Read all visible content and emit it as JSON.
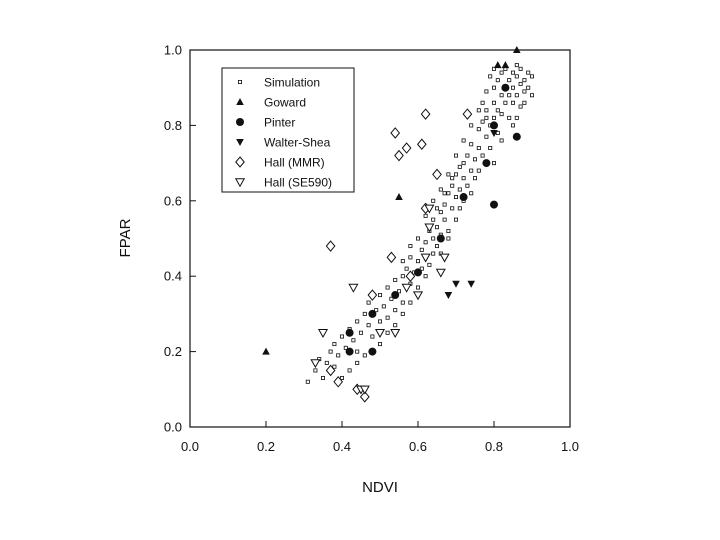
{
  "chart_data": {
    "type": "scatter",
    "xlabel": "NDVI",
    "ylabel": "FPAR",
    "xlim": [
      0.0,
      1.0
    ],
    "ylim": [
      0.0,
      1.0
    ],
    "x_ticks": [
      "0.0",
      "0.2",
      "0.4",
      "0.6",
      "0.8",
      "1.0"
    ],
    "y_ticks": [
      "0.0",
      "0.2",
      "0.4",
      "0.6",
      "0.8",
      "1.0"
    ],
    "grid": false,
    "legend_position": "top-left",
    "series": [
      {
        "name": "Simulation",
        "marker": "small-open-square",
        "points": [
          [
            0.31,
            0.12
          ],
          [
            0.33,
            0.15
          ],
          [
            0.34,
            0.18
          ],
          [
            0.35,
            0.13
          ],
          [
            0.36,
            0.17
          ],
          [
            0.37,
            0.2
          ],
          [
            0.38,
            0.16
          ],
          [
            0.38,
            0.22
          ],
          [
            0.39,
            0.19
          ],
          [
            0.4,
            0.24
          ],
          [
            0.41,
            0.21
          ],
          [
            0.42,
            0.26
          ],
          [
            0.43,
            0.23
          ],
          [
            0.44,
            0.28
          ],
          [
            0.44,
            0.2
          ],
          [
            0.45,
            0.25
          ],
          [
            0.46,
            0.3
          ],
          [
            0.47,
            0.27
          ],
          [
            0.47,
            0.33
          ],
          [
            0.48,
            0.24
          ],
          [
            0.49,
            0.31
          ],
          [
            0.5,
            0.28
          ],
          [
            0.5,
            0.35
          ],
          [
            0.51,
            0.32
          ],
          [
            0.52,
            0.29
          ],
          [
            0.52,
            0.37
          ],
          [
            0.53,
            0.34
          ],
          [
            0.54,
            0.31
          ],
          [
            0.54,
            0.39
          ],
          [
            0.55,
            0.36
          ],
          [
            0.56,
            0.4
          ],
          [
            0.56,
            0.33
          ],
          [
            0.57,
            0.42
          ],
          [
            0.58,
            0.38
          ],
          [
            0.58,
            0.45
          ],
          [
            0.59,
            0.41
          ],
          [
            0.6,
            0.44
          ],
          [
            0.6,
            0.37
          ],
          [
            0.61,
            0.47
          ],
          [
            0.61,
            0.42
          ],
          [
            0.62,
            0.49
          ],
          [
            0.62,
            0.45
          ],
          [
            0.63,
            0.52
          ],
          [
            0.63,
            0.43
          ],
          [
            0.64,
            0.5
          ],
          [
            0.64,
            0.55
          ],
          [
            0.65,
            0.48
          ],
          [
            0.65,
            0.53
          ],
          [
            0.66,
            0.57
          ],
          [
            0.66,
            0.51
          ],
          [
            0.67,
            0.59
          ],
          [
            0.67,
            0.55
          ],
          [
            0.68,
            0.62
          ],
          [
            0.68,
            0.52
          ],
          [
            0.69,
            0.58
          ],
          [
            0.69,
            0.64
          ],
          [
            0.7,
            0.61
          ],
          [
            0.7,
            0.67
          ],
          [
            0.71,
            0.63
          ],
          [
            0.71,
            0.58
          ],
          [
            0.72,
            0.66
          ],
          [
            0.72,
            0.7
          ],
          [
            0.73,
            0.64
          ],
          [
            0.73,
            0.72
          ],
          [
            0.74,
            0.68
          ],
          [
            0.74,
            0.75
          ],
          [
            0.75,
            0.71
          ],
          [
            0.75,
            0.66
          ],
          [
            0.76,
            0.74
          ],
          [
            0.76,
            0.79
          ],
          [
            0.77,
            0.72
          ],
          [
            0.77,
            0.81
          ],
          [
            0.78,
            0.77
          ],
          [
            0.78,
            0.84
          ],
          [
            0.79,
            0.8
          ],
          [
            0.79,
            0.74
          ],
          [
            0.8,
            0.86
          ],
          [
            0.8,
            0.82
          ],
          [
            0.8,
            0.9
          ],
          [
            0.81,
            0.84
          ],
          [
            0.81,
            0.92
          ],
          [
            0.81,
            0.78
          ],
          [
            0.82,
            0.88
          ],
          [
            0.82,
            0.94
          ],
          [
            0.82,
            0.83
          ],
          [
            0.83,
            0.9
          ],
          [
            0.83,
            0.86
          ],
          [
            0.83,
            0.95
          ],
          [
            0.84,
            0.92
          ],
          [
            0.84,
            0.88
          ],
          [
            0.84,
            0.82
          ],
          [
            0.85,
            0.94
          ],
          [
            0.85,
            0.9
          ],
          [
            0.85,
            0.86
          ],
          [
            0.86,
            0.93
          ],
          [
            0.86,
            0.88
          ],
          [
            0.86,
            0.96
          ],
          [
            0.87,
            0.91
          ],
          [
            0.87,
            0.85
          ],
          [
            0.87,
            0.95
          ],
          [
            0.88,
            0.92
          ],
          [
            0.88,
            0.89
          ],
          [
            0.89,
            0.94
          ],
          [
            0.89,
            0.9
          ],
          [
            0.9,
            0.93
          ],
          [
            0.9,
            0.88
          ],
          [
            0.79,
            0.93
          ],
          [
            0.8,
            0.95
          ],
          [
            0.78,
            0.89
          ],
          [
            0.77,
            0.86
          ],
          [
            0.85,
            0.8
          ],
          [
            0.86,
            0.82
          ],
          [
            0.88,
            0.86
          ],
          [
            0.82,
            0.76
          ],
          [
            0.8,
            0.7
          ],
          [
            0.76,
            0.68
          ],
          [
            0.74,
            0.62
          ],
          [
            0.72,
            0.6
          ],
          [
            0.7,
            0.55
          ],
          [
            0.68,
            0.5
          ],
          [
            0.66,
            0.46
          ],
          [
            0.64,
            0.46
          ],
          [
            0.62,
            0.4
          ],
          [
            0.6,
            0.35
          ],
          [
            0.58,
            0.33
          ],
          [
            0.56,
            0.3
          ],
          [
            0.54,
            0.27
          ],
          [
            0.52,
            0.25
          ],
          [
            0.5,
            0.22
          ],
          [
            0.48,
            0.2
          ],
          [
            0.46,
            0.19
          ],
          [
            0.44,
            0.17
          ],
          [
            0.42,
            0.15
          ],
          [
            0.4,
            0.13
          ],
          [
            0.56,
            0.44
          ],
          [
            0.58,
            0.48
          ],
          [
            0.6,
            0.5
          ],
          [
            0.62,
            0.56
          ],
          [
            0.64,
            0.6
          ],
          [
            0.66,
            0.63
          ],
          [
            0.68,
            0.67
          ],
          [
            0.7,
            0.72
          ],
          [
            0.72,
            0.76
          ],
          [
            0.74,
            0.8
          ],
          [
            0.76,
            0.84
          ],
          [
            0.78,
            0.82
          ],
          [
            0.65,
            0.58
          ],
          [
            0.67,
            0.62
          ],
          [
            0.69,
            0.66
          ],
          [
            0.71,
            0.69
          ]
        ]
      },
      {
        "name": "Goward",
        "marker": "filled-triangle-up",
        "points": [
          [
            0.2,
            0.2
          ],
          [
            0.55,
            0.61
          ],
          [
            0.81,
            0.96
          ],
          [
            0.83,
            0.96
          ],
          [
            0.86,
            1.0
          ]
        ]
      },
      {
        "name": "Pinter",
        "marker": "filled-circle",
        "points": [
          [
            0.42,
            0.2
          ],
          [
            0.42,
            0.25
          ],
          [
            0.48,
            0.2
          ],
          [
            0.48,
            0.3
          ],
          [
            0.54,
            0.35
          ],
          [
            0.6,
            0.41
          ],
          [
            0.66,
            0.5
          ],
          [
            0.72,
            0.61
          ],
          [
            0.8,
            0.59
          ],
          [
            0.78,
            0.7
          ],
          [
            0.8,
            0.8
          ],
          [
            0.86,
            0.77
          ],
          [
            0.83,
            0.9
          ]
        ]
      },
      {
        "name": "Walter-Shea",
        "marker": "filled-triangle-down",
        "points": [
          [
            0.68,
            0.35
          ],
          [
            0.7,
            0.38
          ],
          [
            0.74,
            0.38
          ],
          [
            0.8,
            0.78
          ]
        ]
      },
      {
        "name": "Hall (MMR)",
        "marker": "open-diamond",
        "points": [
          [
            0.37,
            0.48
          ],
          [
            0.37,
            0.15
          ],
          [
            0.39,
            0.12
          ],
          [
            0.44,
            0.1
          ],
          [
            0.46,
            0.08
          ],
          [
            0.48,
            0.35
          ],
          [
            0.53,
            0.45
          ],
          [
            0.54,
            0.78
          ],
          [
            0.55,
            0.72
          ],
          [
            0.57,
            0.74
          ],
          [
            0.61,
            0.75
          ],
          [
            0.62,
            0.83
          ],
          [
            0.65,
            0.67
          ],
          [
            0.73,
            0.83
          ],
          [
            0.58,
            0.4
          ],
          [
            0.62,
            0.58
          ]
        ]
      },
      {
        "name": "Hall (SE590)",
        "marker": "open-triangle-down",
        "points": [
          [
            0.33,
            0.17
          ],
          [
            0.35,
            0.25
          ],
          [
            0.43,
            0.37
          ],
          [
            0.45,
            0.1
          ],
          [
            0.46,
            0.1
          ],
          [
            0.5,
            0.25
          ],
          [
            0.54,
            0.25
          ],
          [
            0.57,
            0.37
          ],
          [
            0.6,
            0.35
          ],
          [
            0.63,
            0.58
          ],
          [
            0.63,
            0.53
          ],
          [
            0.66,
            0.41
          ],
          [
            0.62,
            0.45
          ],
          [
            0.67,
            0.45
          ]
        ]
      }
    ]
  }
}
